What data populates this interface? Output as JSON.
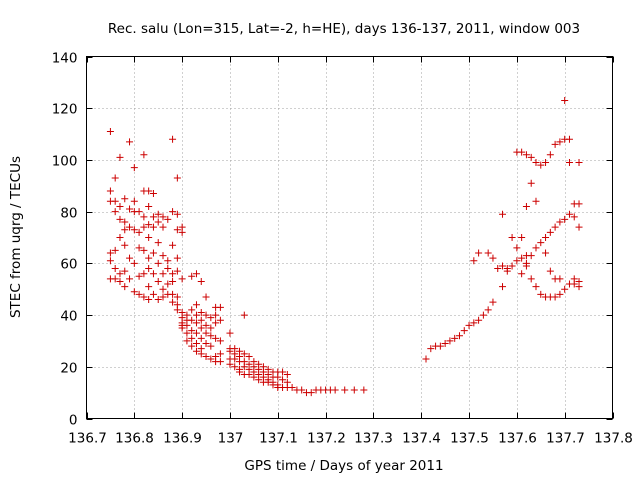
{
  "chart_data": {
    "type": "scatter",
    "title": "Rec. salu (Lon=315, Lat=-2, h=HE), days 136-137, 2011, window 003",
    "xlabel": "GPS time / Days of year 2011",
    "ylabel": "STEC from uqrg / TECUs",
    "xlim": [
      136.7,
      137.8
    ],
    "ylim": [
      0,
      140
    ],
    "xticks": [
      "136.7",
      "136.8",
      "136.9",
      "137",
      "137.1",
      "137.2",
      "137.3",
      "137.4",
      "137.5",
      "137.6",
      "137.7",
      "137.8"
    ],
    "yticks": [
      "0",
      "20",
      "40",
      "60",
      "80",
      "100",
      "120",
      "140"
    ],
    "grid": true,
    "legend": "none",
    "marker": "plus",
    "color": "#cc0000",
    "points": [
      [
        136.75,
        111
      ],
      [
        136.75,
        88
      ],
      [
        136.75,
        84
      ],
      [
        136.75,
        64
      ],
      [
        136.75,
        61
      ],
      [
        136.75,
        54
      ],
      [
        136.76,
        93
      ],
      [
        136.76,
        84
      ],
      [
        136.76,
        80
      ],
      [
        136.76,
        65
      ],
      [
        136.76,
        58
      ],
      [
        136.76,
        54
      ],
      [
        136.77,
        101
      ],
      [
        136.77,
        82
      ],
      [
        136.77,
        77
      ],
      [
        136.77,
        70
      ],
      [
        136.77,
        56
      ],
      [
        136.77,
        53
      ],
      [
        136.78,
        85
      ],
      [
        136.78,
        76
      ],
      [
        136.78,
        73
      ],
      [
        136.78,
        67
      ],
      [
        136.78,
        57
      ],
      [
        136.78,
        51
      ],
      [
        136.79,
        107
      ],
      [
        136.79,
        81
      ],
      [
        136.79,
        74
      ],
      [
        136.79,
        62
      ],
      [
        136.79,
        54
      ],
      [
        136.8,
        97
      ],
      [
        136.8,
        84
      ],
      [
        136.8,
        80
      ],
      [
        136.8,
        73
      ],
      [
        136.8,
        60
      ],
      [
        136.8,
        49
      ],
      [
        136.81,
        80
      ],
      [
        136.81,
        72
      ],
      [
        136.81,
        66
      ],
      [
        136.81,
        55
      ],
      [
        136.81,
        48
      ],
      [
        136.82,
        102
      ],
      [
        136.82,
        88
      ],
      [
        136.82,
        78
      ],
      [
        136.82,
        74
      ],
      [
        136.82,
        65
      ],
      [
        136.82,
        56
      ],
      [
        136.82,
        47
      ],
      [
        136.83,
        88
      ],
      [
        136.83,
        82
      ],
      [
        136.83,
        75
      ],
      [
        136.83,
        70
      ],
      [
        136.83,
        62
      ],
      [
        136.83,
        58
      ],
      [
        136.83,
        51
      ],
      [
        136.83,
        46
      ],
      [
        136.84,
        87
      ],
      [
        136.84,
        78
      ],
      [
        136.84,
        74
      ],
      [
        136.84,
        64
      ],
      [
        136.84,
        56
      ],
      [
        136.84,
        48
      ],
      [
        136.85,
        79
      ],
      [
        136.85,
        76
      ],
      [
        136.85,
        68
      ],
      [
        136.85,
        60
      ],
      [
        136.85,
        53
      ],
      [
        136.85,
        46
      ],
      [
        136.86,
        78
      ],
      [
        136.86,
        74
      ],
      [
        136.86,
        63
      ],
      [
        136.86,
        56
      ],
      [
        136.86,
        50
      ],
      [
        136.86,
        47
      ],
      [
        136.87,
        77
      ],
      [
        136.87,
        61
      ],
      [
        136.87,
        58
      ],
      [
        136.87,
        52
      ],
      [
        136.87,
        48
      ],
      [
        136.88,
        108
      ],
      [
        136.88,
        80
      ],
      [
        136.88,
        67
      ],
      [
        136.88,
        56
      ],
      [
        136.88,
        53
      ],
      [
        136.88,
        48
      ],
      [
        136.88,
        45
      ],
      [
        136.89,
        93
      ],
      [
        136.89,
        79
      ],
      [
        136.89,
        73
      ],
      [
        136.89,
        62
      ],
      [
        136.89,
        57
      ],
      [
        136.89,
        47
      ],
      [
        136.89,
        44
      ],
      [
        136.89,
        42
      ],
      [
        136.9,
        74
      ],
      [
        136.9,
        72
      ],
      [
        136.9,
        54
      ],
      [
        136.9,
        41
      ],
      [
        136.9,
        39
      ],
      [
        136.9,
        37
      ],
      [
        136.9,
        36
      ],
      [
        136.9,
        35
      ],
      [
        136.91,
        40
      ],
      [
        136.91,
        38
      ],
      [
        136.91,
        36
      ],
      [
        136.91,
        33
      ],
      [
        136.91,
        30
      ],
      [
        136.92,
        55
      ],
      [
        136.92,
        42
      ],
      [
        136.92,
        38
      ],
      [
        136.92,
        34
      ],
      [
        136.92,
        31
      ],
      [
        136.92,
        28
      ],
      [
        136.93,
        56
      ],
      [
        136.93,
        44
      ],
      [
        136.93,
        40
      ],
      [
        136.93,
        37
      ],
      [
        136.93,
        33
      ],
      [
        136.93,
        29
      ],
      [
        136.93,
        26
      ],
      [
        136.94,
        53
      ],
      [
        136.94,
        41
      ],
      [
        136.94,
        38
      ],
      [
        136.94,
        35
      ],
      [
        136.94,
        31
      ],
      [
        136.94,
        27
      ],
      [
        136.94,
        25
      ],
      [
        136.95,
        47
      ],
      [
        136.95,
        40
      ],
      [
        136.95,
        36
      ],
      [
        136.95,
        33
      ],
      [
        136.95,
        29
      ],
      [
        136.95,
        24
      ],
      [
        136.96,
        39
      ],
      [
        136.96,
        35
      ],
      [
        136.96,
        32
      ],
      [
        136.96,
        28
      ],
      [
        136.96,
        23
      ],
      [
        136.97,
        43
      ],
      [
        136.97,
        40
      ],
      [
        136.97,
        37
      ],
      [
        136.97,
        31
      ],
      [
        136.97,
        24
      ],
      [
        136.97,
        22
      ],
      [
        136.98,
        43
      ],
      [
        136.98,
        38
      ],
      [
        136.98,
        30
      ],
      [
        136.98,
        25
      ],
      [
        136.98,
        22
      ],
      [
        137.0,
        33
      ],
      [
        137.0,
        27
      ],
      [
        137.0,
        26
      ],
      [
        137.0,
        23
      ],
      [
        137.0,
        21
      ],
      [
        137.01,
        27
      ],
      [
        137.01,
        25
      ],
      [
        137.01,
        23
      ],
      [
        137.01,
        20
      ],
      [
        137.02,
        26
      ],
      [
        137.02,
        24
      ],
      [
        137.02,
        22
      ],
      [
        137.02,
        19
      ],
      [
        137.02,
        18
      ],
      [
        137.03,
        40
      ],
      [
        137.03,
        25
      ],
      [
        137.03,
        22
      ],
      [
        137.03,
        20
      ],
      [
        137.03,
        17
      ],
      [
        137.04,
        24
      ],
      [
        137.04,
        21
      ],
      [
        137.04,
        19
      ],
      [
        137.04,
        17
      ],
      [
        137.05,
        22
      ],
      [
        137.05,
        20
      ],
      [
        137.05,
        18
      ],
      [
        137.05,
        16
      ],
      [
        137.06,
        21
      ],
      [
        137.06,
        19
      ],
      [
        137.06,
        17
      ],
      [
        137.06,
        15
      ],
      [
        137.07,
        20
      ],
      [
        137.07,
        18
      ],
      [
        137.07,
        16
      ],
      [
        137.07,
        14
      ],
      [
        137.08,
        19
      ],
      [
        137.08,
        17
      ],
      [
        137.08,
        15
      ],
      [
        137.08,
        14
      ],
      [
        137.09,
        18
      ],
      [
        137.09,
        16
      ],
      [
        137.09,
        14
      ],
      [
        137.09,
        13
      ],
      [
        137.1,
        18
      ],
      [
        137.1,
        16
      ],
      [
        137.1,
        13
      ],
      [
        137.1,
        12
      ],
      [
        137.11,
        18
      ],
      [
        137.11,
        15
      ],
      [
        137.11,
        12
      ],
      [
        137.12,
        17
      ],
      [
        137.12,
        14
      ],
      [
        137.12,
        12
      ],
      [
        137.13,
        12
      ],
      [
        137.14,
        11
      ],
      [
        137.15,
        11
      ],
      [
        137.16,
        10
      ],
      [
        137.17,
        10
      ],
      [
        137.18,
        11
      ],
      [
        137.19,
        11
      ],
      [
        137.2,
        11
      ],
      [
        137.21,
        11
      ],
      [
        137.22,
        11
      ],
      [
        137.24,
        11
      ],
      [
        137.26,
        11
      ],
      [
        137.28,
        11
      ],
      [
        137.41,
        23
      ],
      [
        137.42,
        27
      ],
      [
        137.43,
        28
      ],
      [
        137.44,
        28
      ],
      [
        137.45,
        29
      ],
      [
        137.46,
        30
      ],
      [
        137.47,
        31
      ],
      [
        137.48,
        32
      ],
      [
        137.49,
        34
      ],
      [
        137.5,
        36
      ],
      [
        137.51,
        37
      ],
      [
        137.52,
        38
      ],
      [
        137.53,
        40
      ],
      [
        137.54,
        42
      ],
      [
        137.55,
        45
      ],
      [
        137.51,
        61
      ],
      [
        137.52,
        64
      ],
      [
        137.54,
        64
      ],
      [
        137.56,
        58
      ],
      [
        137.57,
        51
      ],
      [
        137.58,
        57
      ],
      [
        137.55,
        62
      ],
      [
        137.57,
        59
      ],
      [
        137.58,
        58
      ],
      [
        137.59,
        59
      ],
      [
        137.6,
        61
      ],
      [
        137.61,
        62
      ],
      [
        137.62,
        63
      ],
      [
        137.57,
        79
      ],
      [
        137.59,
        70
      ],
      [
        137.6,
        66
      ],
      [
        137.61,
        70
      ],
      [
        137.62,
        82
      ],
      [
        137.63,
        91
      ],
      [
        137.64,
        84
      ],
      [
        137.6,
        103
      ],
      [
        137.61,
        103
      ],
      [
        137.62,
        102
      ],
      [
        137.63,
        101
      ],
      [
        137.64,
        99
      ],
      [
        137.65,
        98
      ],
      [
        137.66,
        99
      ],
      [
        137.67,
        102
      ],
      [
        137.68,
        106
      ],
      [
        137.69,
        107
      ],
      [
        137.7,
        108
      ],
      [
        137.71,
        108
      ],
      [
        137.61,
        56
      ],
      [
        137.62,
        59
      ],
      [
        137.63,
        54
      ],
      [
        137.64,
        51
      ],
      [
        137.65,
        48
      ],
      [
        137.66,
        47
      ],
      [
        137.67,
        47
      ],
      [
        137.68,
        47
      ],
      [
        137.69,
        48
      ],
      [
        137.7,
        50
      ],
      [
        137.71,
        52
      ],
      [
        137.72,
        52
      ],
      [
        137.73,
        53
      ],
      [
        137.62,
        60
      ],
      [
        137.63,
        63
      ],
      [
        137.64,
        66
      ],
      [
        137.65,
        68
      ],
      [
        137.66,
        70
      ],
      [
        137.67,
        72
      ],
      [
        137.68,
        74
      ],
      [
        137.69,
        76
      ],
      [
        137.7,
        77
      ],
      [
        137.71,
        79
      ],
      [
        137.72,
        83
      ],
      [
        137.73,
        83
      ],
      [
        137.66,
        64
      ],
      [
        137.67,
        57
      ],
      [
        137.68,
        54
      ],
      [
        137.69,
        54
      ],
      [
        137.7,
        123
      ],
      [
        137.71,
        99
      ],
      [
        137.72,
        78
      ],
      [
        137.73,
        74
      ],
      [
        137.73,
        99
      ],
      [
        137.72,
        54
      ],
      [
        137.73,
        51
      ]
    ]
  }
}
